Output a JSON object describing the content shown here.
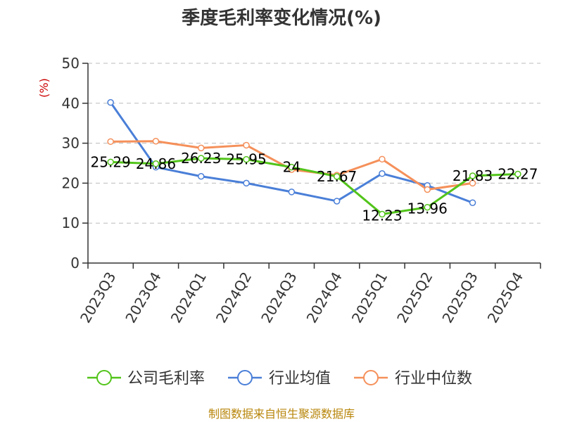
{
  "chart_data": {
    "type": "line",
    "title": "季度毛利率变化情况(%)",
    "ylabel": "(%)",
    "xlabel": "",
    "ylim": [
      0,
      50
    ],
    "yticks": [
      0,
      10,
      20,
      30,
      40,
      50
    ],
    "grid": true,
    "legend_position": "bottom",
    "categories": [
      "2023Q3",
      "2023Q4",
      "2024Q1",
      "2024Q2",
      "2024Q3",
      "2024Q4",
      "2025Q1",
      "2025Q2",
      "2025Q3",
      "2025Q4"
    ],
    "series": [
      {
        "name": "公司毛利率",
        "color": "#52c41a",
        "values": [
          25.29,
          24.86,
          26.23,
          25.95,
          24,
          21.67,
          12.23,
          13.96,
          21.83,
          22.27
        ],
        "labels": [
          "25.29",
          "24.86",
          "26.23",
          "25.95",
          "24",
          "21.67",
          "12.23",
          "13.96",
          "21.83",
          "22.27"
        ]
      },
      {
        "name": "行业均值",
        "color": "#4a7fd8",
        "values": [
          40.2,
          24.0,
          21.7,
          20.0,
          17.8,
          15.5,
          22.4,
          19.4,
          15.1,
          null
        ]
      },
      {
        "name": "行业中位数",
        "color": "#f5905a",
        "values": [
          30.4,
          30.5,
          28.8,
          29.5,
          23.4,
          22.0,
          26.0,
          18.4,
          20.0,
          null
        ]
      }
    ]
  },
  "footer": {
    "source": "制图数据来自恒生聚源数据库"
  }
}
